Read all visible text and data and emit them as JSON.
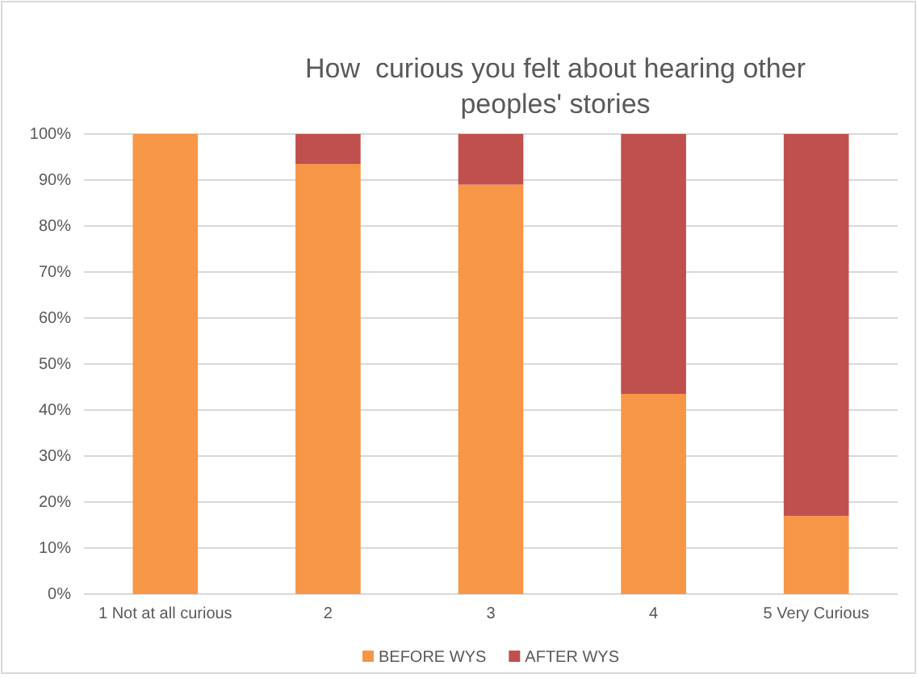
{
  "chart_data": {
    "type": "bar",
    "stacked": true,
    "title": "How  curious you felt about hearing other peoples' stories",
    "categories": [
      "1 Not at all curious",
      "2",
      "3",
      "4",
      "5 Very Curious"
    ],
    "series": [
      {
        "name": "BEFORE WYS",
        "color": "#f79646",
        "values": [
          100,
          93.5,
          89,
          43.5,
          17
        ]
      },
      {
        "name": "AFTER WYS",
        "color": "#c0504d",
        "values": [
          0,
          6.5,
          11,
          56.5,
          83
        ]
      }
    ],
    "ylim": [
      0,
      100
    ],
    "yticks": [
      {
        "value": 0,
        "label": "0%"
      },
      {
        "value": 10,
        "label": "10%"
      },
      {
        "value": 20,
        "label": "20%"
      },
      {
        "value": 30,
        "label": "30%"
      },
      {
        "value": 40,
        "label": "40%"
      },
      {
        "value": 50,
        "label": "50%"
      },
      {
        "value": 60,
        "label": "60%"
      },
      {
        "value": 70,
        "label": "70%"
      },
      {
        "value": 80,
        "label": "80%"
      },
      {
        "value": 90,
        "label": "90%"
      },
      {
        "value": 100,
        "label": "100%"
      }
    ],
    "grid": "y",
    "legend": "bottom"
  }
}
